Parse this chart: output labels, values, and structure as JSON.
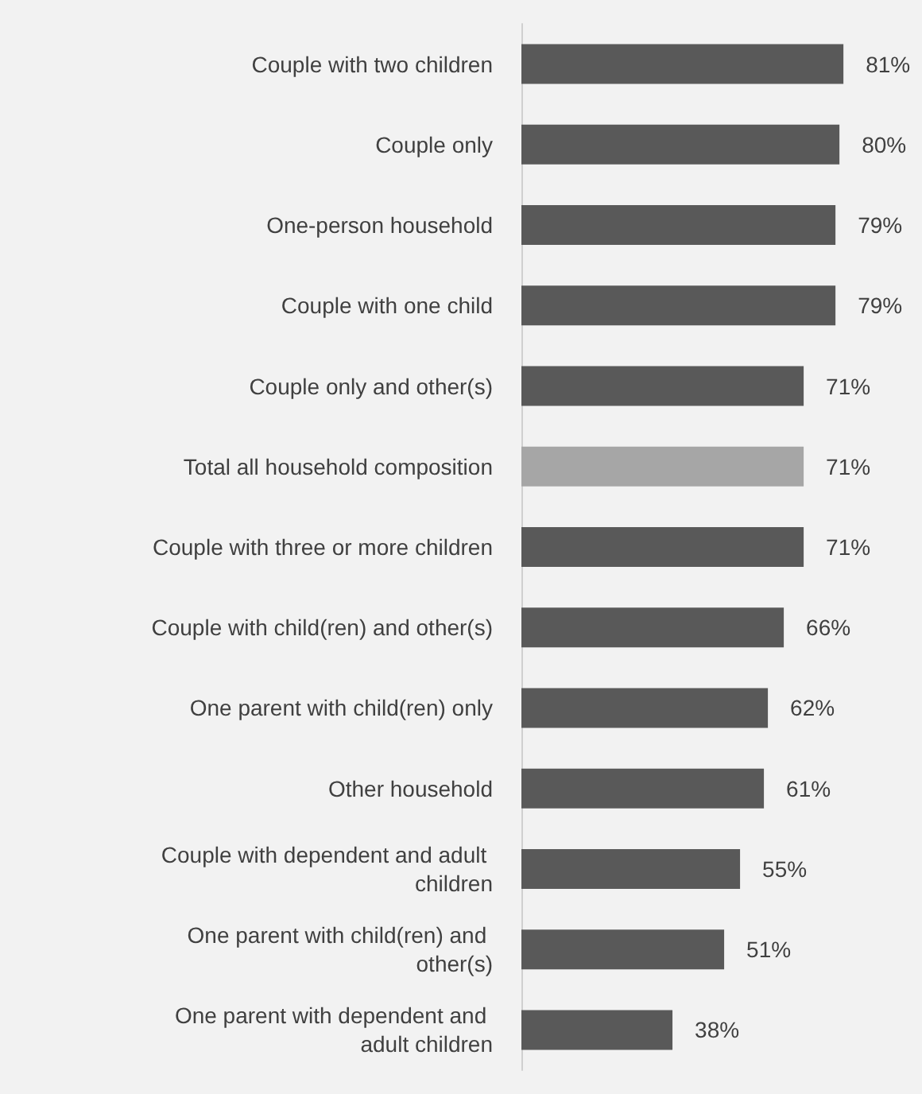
{
  "chart_data": {
    "type": "bar",
    "orientation": "horizontal",
    "categories": [
      "Couple with two children",
      "Couple only",
      "One-person household",
      "Couple with one child",
      "Couple only and other(s)",
      "Total all household composition",
      "Couple with three or more children",
      "Couple with child(ren) and other(s)",
      "One parent with child(ren) only",
      "Other household",
      "Couple with dependent and adult children",
      "One parent with child(ren) and other(s)",
      "One parent with dependent and adult children"
    ],
    "values": [
      81,
      80,
      79,
      79,
      71,
      71,
      71,
      66,
      62,
      61,
      55,
      51,
      38
    ],
    "colors": [
      "#595959",
      "#595959",
      "#595959",
      "#595959",
      "#595959",
      "#a6a6a6",
      "#595959",
      "#595959",
      "#595959",
      "#595959",
      "#595959",
      "#595959",
      "#595959"
    ],
    "value_labels": [
      "81%",
      "80%",
      "79%",
      "79%",
      "71%",
      "71%",
      "71%",
      "66%",
      "62%",
      "61%",
      "55%",
      "51%",
      "38%"
    ]
  }
}
